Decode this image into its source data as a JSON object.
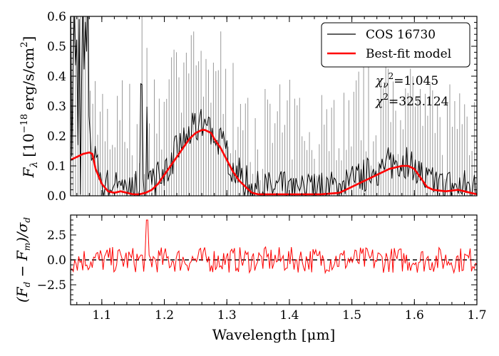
{
  "chart_data": [
    {
      "type": "line",
      "panel": "top",
      "ylabel_main": "F",
      "ylabel_sub": "λ",
      "ylabel_unit_pre": "[10",
      "ylabel_unit_exp": "−18",
      "ylabel_unit_post": "erg/s/cm",
      "ylabel_unit_exp2": "2",
      "ylabel_unit_close": "]",
      "xlim": [
        1.05,
        1.7
      ],
      "ylim": [
        0.0,
        0.6
      ],
      "yticks": [
        "0.0",
        "0.1",
        "0.2",
        "0.3",
        "0.4",
        "0.5",
        "0.6"
      ],
      "legend_location": "upper-right",
      "legend": [
        "COS 16730",
        "Best-fit model"
      ],
      "annotation_chi_red_label": "χ",
      "annotation_chi_red_sub": "ν",
      "annotation_chi_red_sup": "2",
      "annotation_chi_red_value": "=1.045",
      "annotation_chi_label": "χ",
      "annotation_chi_sup": "2",
      "annotation_chi_value": "=325.124",
      "colors": {
        "data": "#000000",
        "error": "#999999",
        "model": "#ff0000"
      },
      "series": [
        {
          "name": "Best-fit model",
          "x": [
            1.05,
            1.06,
            1.07,
            1.08,
            1.085,
            1.09,
            1.1,
            1.11,
            1.12,
            1.13,
            1.14,
            1.15,
            1.16,
            1.17,
            1.18,
            1.19,
            1.2,
            1.21,
            1.22,
            1.23,
            1.24,
            1.25,
            1.26,
            1.265,
            1.275,
            1.28,
            1.29,
            1.3,
            1.31,
            1.32,
            1.33,
            1.34,
            1.35,
            1.4,
            1.45,
            1.48,
            1.5,
            1.52,
            1.54,
            1.56,
            1.57,
            1.58,
            1.59,
            1.6,
            1.61,
            1.62,
            1.63,
            1.65,
            1.67,
            1.68,
            1.69,
            1.7
          ],
          "y": [
            0.12,
            0.13,
            0.14,
            0.145,
            0.14,
            0.09,
            0.04,
            0.015,
            0.01,
            0.015,
            0.01,
            0.005,
            0.005,
            0.01,
            0.02,
            0.04,
            0.07,
            0.1,
            0.13,
            0.16,
            0.19,
            0.21,
            0.22,
            0.22,
            0.21,
            0.19,
            0.16,
            0.12,
            0.08,
            0.05,
            0.03,
            0.01,
            0.005,
            0.005,
            0.005,
            0.01,
            0.03,
            0.05,
            0.07,
            0.09,
            0.095,
            0.1,
            0.1,
            0.09,
            0.06,
            0.03,
            0.02,
            0.015,
            0.02,
            0.015,
            0.01,
            0.005
          ]
        }
      ]
    },
    {
      "type": "line",
      "panel": "bottom",
      "ylabel_open": "(F",
      "ylabel_sub1": "d",
      "ylabel_mid": " − F",
      "ylabel_sub2": "m",
      "ylabel_div": ")/σ",
      "ylabel_sub3": "d",
      "xlabel": "Wavelength [μm]",
      "xlim": [
        1.05,
        1.7
      ],
      "ylim": [
        -4.5,
        4.5
      ],
      "yticks": [
        "2.5",
        "0.0",
        "−2.5"
      ],
      "xticks": [
        "1.1",
        "1.2",
        "1.3",
        "1.4",
        "1.5",
        "1.6",
        "1.7"
      ],
      "zero_line": {
        "style": "dashed",
        "y": 0.0
      }
    }
  ]
}
